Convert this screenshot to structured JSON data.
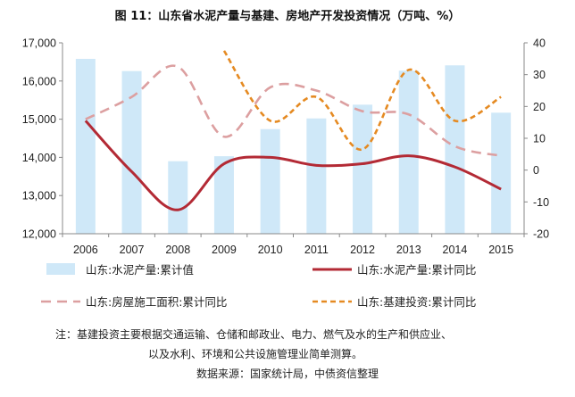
{
  "chart_data": {
    "type": "bar+line",
    "title": "图 11：山东省水泥产量与基建、房地产开发投资情况（万吨、%）",
    "categories": [
      "2006",
      "2007",
      "2008",
      "2009",
      "2010",
      "2011",
      "2012",
      "2013",
      "2014",
      "2015"
    ],
    "y_left": {
      "ylim": [
        12000,
        17000
      ],
      "ticks": [
        "12,000",
        "13,000",
        "14,000",
        "15,000",
        "16,000",
        "17,000"
      ]
    },
    "y_right": {
      "ylim": [
        -20,
        40
      ],
      "ticks": [
        "-20",
        "-10",
        "0",
        "10",
        "20",
        "30",
        "40"
      ]
    },
    "grid": false,
    "legend_position": "bottom",
    "series": [
      {
        "name": "山东:水泥产量:累计值",
        "type": "bar",
        "axis": "left",
        "color": "#cfe8f8",
        "values": [
          16580,
          16260,
          13900,
          14030,
          14740,
          15020,
          15380,
          16270,
          16410,
          15170
        ]
      },
      {
        "name": "山东:水泥产量:累计同比",
        "type": "line",
        "axis": "right",
        "color": "#b32a35",
        "dash": "solid",
        "values": [
          15.5,
          -0.5,
          -12.5,
          2.0,
          4.0,
          1.5,
          2.0,
          4.5,
          1.0,
          -6.0
        ]
      },
      {
        "name": "山东:房屋施工面积:累计同比",
        "type": "line",
        "axis": "right",
        "color": "#dc9fa0",
        "dash": "long",
        "values": [
          16.0,
          23.0,
          32.5,
          10.5,
          26.0,
          25.0,
          18.5,
          17.5,
          7.5,
          4.5
        ]
      },
      {
        "name": "山东:基建投资:累计同比",
        "type": "line",
        "axis": "right",
        "color": "#e58a22",
        "dash": "short",
        "values": [
          null,
          null,
          null,
          37.5,
          15.5,
          23.0,
          6.5,
          31.5,
          15.5,
          23.0
        ]
      }
    ]
  },
  "notes": {
    "line1": "注：基建投资主要根据交通运输、仓储和邮政业、电力、燃气及水的生产和供应业、",
    "line2": "以及水利、环境和公共设施管理业简单测算。",
    "source": "数据来源：国家统计局，中债资信整理"
  }
}
